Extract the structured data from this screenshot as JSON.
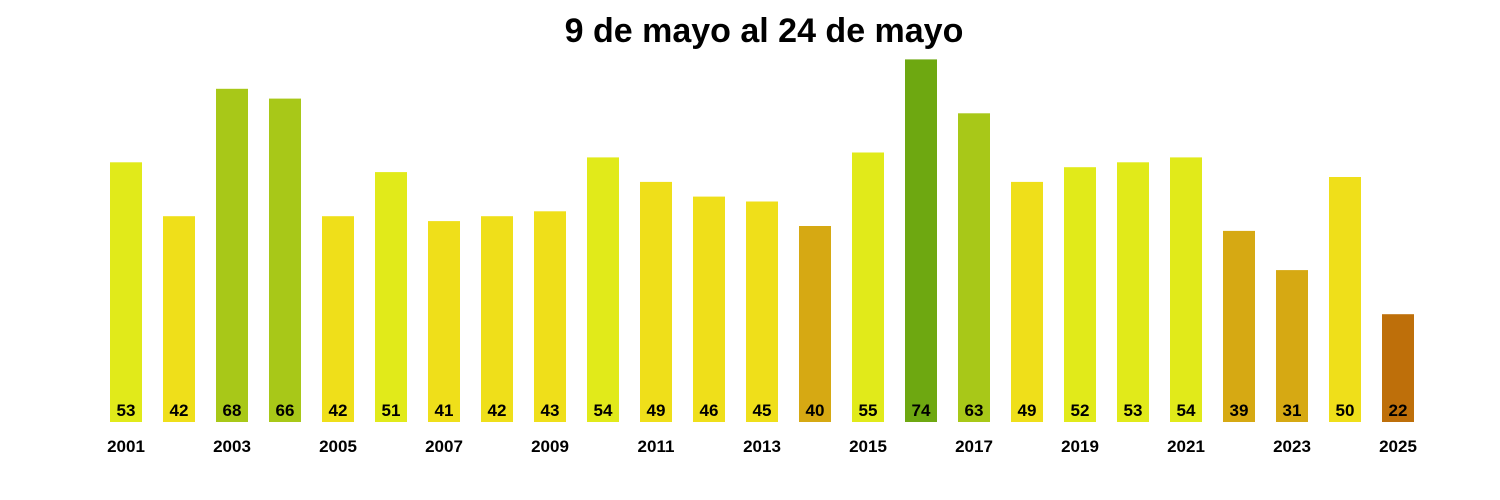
{
  "chart_data": {
    "type": "bar",
    "title": "9 de mayo al 24 de mayo",
    "xlabel": "",
    "ylabel": "",
    "categories": [
      "2001",
      "2002",
      "2003",
      "2004",
      "2005",
      "2006",
      "2007",
      "2008",
      "2009",
      "2010",
      "2011",
      "2012",
      "2013",
      "2014",
      "2015",
      "2016",
      "2017",
      "2018",
      "2019",
      "2020",
      "2021",
      "2022",
      "2023",
      "2024",
      "2025"
    ],
    "tick_labels": [
      "2001",
      "2003",
      "2005",
      "2007",
      "2009",
      "2011",
      "2013",
      "2015",
      "2017",
      "2019",
      "2021",
      "2023",
      "2025"
    ],
    "values": [
      53,
      42,
      68,
      66,
      42,
      51,
      41,
      42,
      43,
      54,
      49,
      46,
      45,
      40,
      55,
      74,
      63,
      49,
      52,
      53,
      54,
      39,
      31,
      50,
      22
    ],
    "data_labels": [
      "53",
      "42",
      "68",
      "66",
      "42",
      "51",
      "41",
      "42",
      "43",
      "54",
      "49",
      "46",
      "45",
      "40",
      "55",
      "74",
      "63",
      "49",
      "52",
      "53",
      "54",
      "39",
      "31",
      "50",
      "22"
    ],
    "colors": [
      "#e1ea1a",
      "#efdf1a",
      "#a8c818",
      "#a8c818",
      "#efdf1a",
      "#e1ea1a",
      "#efdf1a",
      "#efdf1a",
      "#efdf1a",
      "#e1ea1a",
      "#efdf1a",
      "#efdf1a",
      "#efdf1a",
      "#d6a913",
      "#e1ea1a",
      "#6ea811",
      "#a8c818",
      "#efdf1a",
      "#e1ea1a",
      "#e1ea1a",
      "#e1ea1a",
      "#d6a913",
      "#d6a913",
      "#efdf1a",
      "#be6f0a"
    ],
    "ylim": [
      0,
      74
    ],
    "grid": false,
    "legend": "none"
  }
}
